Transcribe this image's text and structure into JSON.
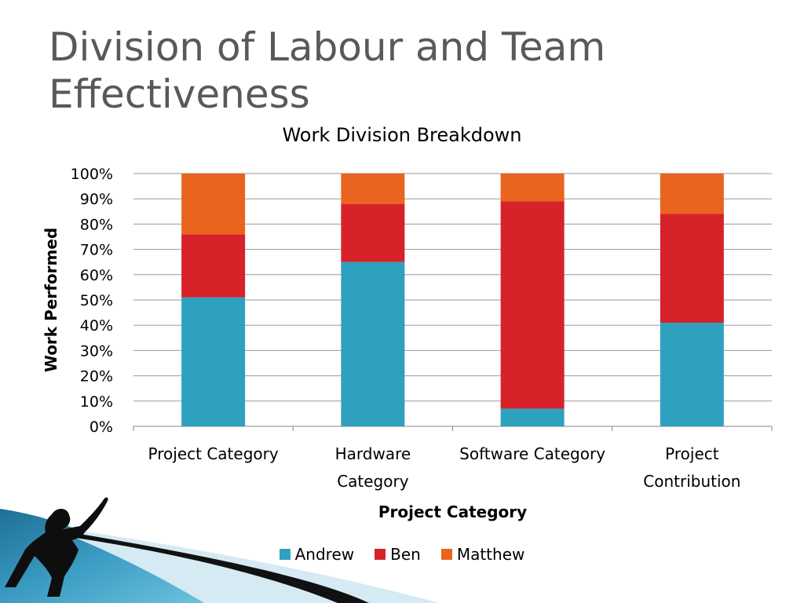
{
  "slide": {
    "title": "Division of Labour and Team Effectiveness"
  },
  "chart_data": {
    "type": "bar",
    "stacked": "percent",
    "title": "Work Division Breakdown",
    "xlabel": "Project Category",
    "ylabel": "Work Performed",
    "ylim": [
      0,
      100
    ],
    "yticks": [
      "0%",
      "10%",
      "20%",
      "30%",
      "40%",
      "50%",
      "60%",
      "70%",
      "80%",
      "90%",
      "100%"
    ],
    "categories": [
      [
        "Project Category"
      ],
      [
        "Hardware",
        "Category"
      ],
      [
        "Software Category"
      ],
      [
        "Project",
        "Contribution"
      ]
    ],
    "series": [
      {
        "name": "Andrew",
        "color": "#2ea1bf",
        "values": [
          51,
          65,
          7,
          41
        ]
      },
      {
        "name": "Ben",
        "color": "#d7222a",
        "values": [
          25,
          23,
          82,
          43
        ]
      },
      {
        "name": "Matthew",
        "color": "#e9641f",
        "values": [
          24,
          12,
          11,
          16
        ]
      }
    ],
    "grid": true,
    "legend_position": "bottom"
  }
}
